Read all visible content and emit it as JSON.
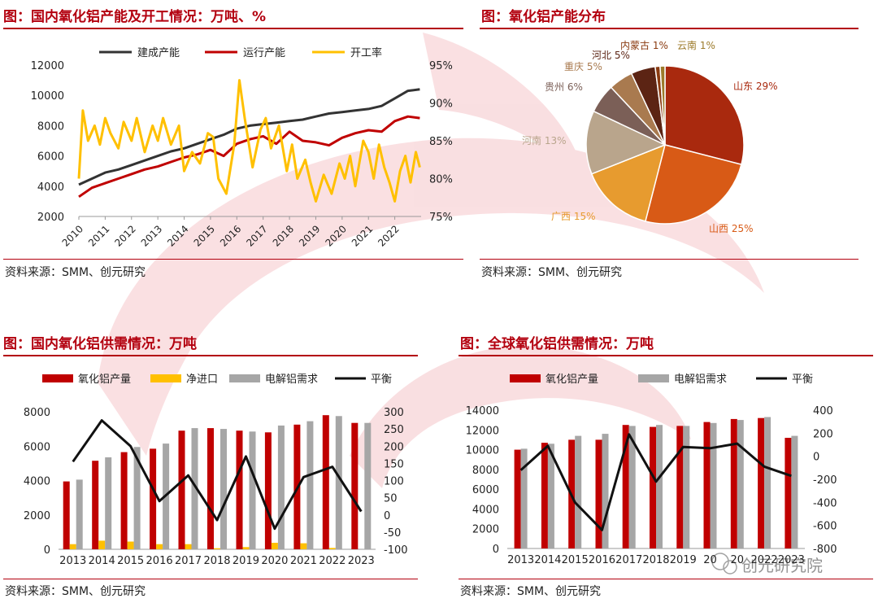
{
  "panels": {
    "tl": {
      "title": "图：国内氧化铝产能及开工情况：万吨、%",
      "source": "资料来源：SMM、创元研究"
    },
    "tr": {
      "title": "图：氧化铝产能分布",
      "source": "资料来源：SMM、创元研究"
    },
    "bl": {
      "title": "图：国内氧化铝供需情况：万吨",
      "source": "资料来源：SMM、创元研究"
    },
    "br": {
      "title": "图：全球氧化铝供需情况：万吨",
      "source": "资料来源：SMM、创元研究"
    }
  },
  "watermark": {
    "text": "创元研究院"
  },
  "colors": {
    "accent": "#b3000f",
    "watermark": "#f4c4c8"
  },
  "chart_data": [
    {
      "id": "capacity_line",
      "type": "line",
      "title": "图：国内氧化铝产能及开工情况：万吨、%",
      "x_ticks": [
        "2010",
        "2011",
        "2012",
        "2013",
        "2014",
        "2015",
        "2016",
        "2017",
        "2018",
        "2019",
        "2020",
        "2021",
        "2022"
      ],
      "ylim": [
        2000,
        12000
      ],
      "y_ticks": [
        "2000",
        "4000",
        "6000",
        "8000",
        "10000",
        "12000"
      ],
      "y2lim": [
        75,
        95
      ],
      "y2_ticks": [
        "75%",
        "80%",
        "85%",
        "90%",
        "95%"
      ],
      "grid": false,
      "legend_position": "top",
      "series": [
        {
          "name": "建成产能",
          "axis": "left",
          "color": "#333333",
          "x": [
            2010.0,
            2010.5,
            2011.0,
            2011.5,
            2012.0,
            2012.5,
            2013.0,
            2013.5,
            2014.0,
            2014.5,
            2015.0,
            2015.5,
            2016.0,
            2016.5,
            2017.0,
            2017.5,
            2018.0,
            2018.5,
            2019.0,
            2019.5,
            2020.0,
            2020.5,
            2021.0,
            2021.5,
            2022.0,
            2022.5,
            2022.95
          ],
          "y": [
            4100,
            4500,
            4900,
            5100,
            5400,
            5700,
            6000,
            6300,
            6500,
            6800,
            7100,
            7400,
            7800,
            8000,
            8100,
            8200,
            8300,
            8400,
            8600,
            8800,
            8900,
            9000,
            9100,
            9300,
            9800,
            10300,
            10400
          ]
        },
        {
          "name": "运行产能",
          "axis": "left",
          "color": "#c00000",
          "x": [
            2010.0,
            2010.5,
            2011.0,
            2011.5,
            2012.0,
            2012.5,
            2013.0,
            2013.5,
            2014.0,
            2014.5,
            2015.0,
            2015.5,
            2016.0,
            2016.5,
            2017.0,
            2017.5,
            2018.0,
            2018.5,
            2019.0,
            2019.5,
            2020.0,
            2020.5,
            2021.0,
            2021.5,
            2022.0,
            2022.5,
            2022.95
          ],
          "y": [
            3300,
            3900,
            4200,
            4500,
            4800,
            5100,
            5300,
            5600,
            5900,
            6100,
            6400,
            6000,
            6800,
            7100,
            7300,
            6800,
            7600,
            7000,
            6900,
            6700,
            7200,
            7500,
            7700,
            7600,
            8300,
            8600,
            8500
          ]
        },
        {
          "name": "开工率",
          "axis": "right",
          "color": "#ffc000",
          "x": [
            2010.0,
            2010.15,
            2010.35,
            2010.6,
            2010.8,
            2011.0,
            2011.2,
            2011.5,
            2011.7,
            2012.0,
            2012.2,
            2012.5,
            2012.8,
            2013.0,
            2013.2,
            2013.5,
            2013.8,
            2014.0,
            2014.3,
            2014.6,
            2014.9,
            2015.1,
            2015.3,
            2015.6,
            2015.9,
            2016.1,
            2016.3,
            2016.6,
            2016.9,
            2017.1,
            2017.3,
            2017.6,
            2017.9,
            2018.1,
            2018.3,
            2018.6,
            2018.8,
            2019.0,
            2019.3,
            2019.6,
            2019.9,
            2020.1,
            2020.3,
            2020.5,
            2020.8,
            2021.0,
            2021.2,
            2021.4,
            2021.6,
            2021.8,
            2022.0,
            2022.2,
            2022.4,
            2022.6,
            2022.8,
            2022.95
          ],
          "y": [
            80.0,
            89.0,
            85.0,
            87.0,
            84.5,
            88.0,
            86.0,
            84.0,
            87.5,
            85.0,
            88.0,
            83.5,
            87.0,
            85.0,
            88.0,
            84.5,
            87.0,
            81.0,
            83.5,
            82.0,
            86.0,
            85.5,
            80.0,
            78.0,
            84.5,
            93.0,
            88.0,
            81.5,
            86.5,
            88.0,
            84.0,
            87.0,
            81.0,
            84.5,
            80.0,
            82.5,
            79.5,
            77.0,
            80.5,
            78.0,
            82.0,
            80.0,
            83.0,
            79.0,
            85.0,
            83.5,
            80.0,
            84.5,
            81.5,
            79.5,
            77.0,
            81.0,
            83.0,
            79.5,
            83.5,
            81.5
          ]
        }
      ]
    },
    {
      "id": "capacity_pie",
      "type": "pie",
      "title": "图：氧化铝产能分布",
      "labels": [
        "山东",
        "山西",
        "广西",
        "河南",
        "贵州",
        "重庆",
        "河北",
        "内蒙古",
        "云南"
      ],
      "values": [
        29,
        25,
        15,
        13,
        6,
        5,
        5,
        1,
        1
      ],
      "label_texts": [
        "山东 29%",
        "山西 25%",
        "广西 15%",
        "河南 13%",
        "贵州 6%",
        "重庆 5%",
        "河北 5%",
        "内蒙古 1%",
        "云南 1%"
      ],
      "colors": [
        "#a9290e",
        "#d85a16",
        "#e79b2f",
        "#b9a58c",
        "#7b5f57",
        "#a97a4f",
        "#5c2414",
        "#8a3a10",
        "#9c7a2a"
      ]
    },
    {
      "id": "domestic_supply",
      "type": "bar",
      "title": "图：国内氧化铝供需情况：万吨",
      "categories": [
        "2013",
        "2014",
        "2015",
        "2016",
        "2017",
        "2018",
        "2019",
        "2020",
        "2021",
        "2022",
        "2023"
      ],
      "ylim": [
        0,
        8000
      ],
      "y_ticks": [
        "0",
        "2000",
        "4000",
        "6000",
        "8000"
      ],
      "y2lim": [
        -100,
        300
      ],
      "y2_ticks": [
        "-100",
        "-50",
        "0",
        "50",
        "100",
        "150",
        "200",
        "250",
        "300"
      ],
      "legend_position": "top",
      "series": [
        {
          "name": "氧化铝产量",
          "type": "bar",
          "axis": "left",
          "color": "#c00000",
          "values": [
            3950,
            5150,
            5650,
            5850,
            6900,
            7050,
            6900,
            6800,
            7250,
            7800,
            7350
          ]
        },
        {
          "name": "净进口",
          "type": "bar",
          "axis": "left",
          "color": "#ffc000",
          "values": [
            300,
            500,
            450,
            300,
            300,
            60,
            130,
            380,
            350,
            80,
            0
          ]
        },
        {
          "name": "电解铝需求",
          "type": "bar",
          "axis": "left",
          "color": "#a6a6a6",
          "values": [
            4050,
            5350,
            5950,
            6150,
            7050,
            7000,
            6850,
            7200,
            7450,
            7750,
            7350
          ]
        },
        {
          "name": "平衡",
          "type": "line",
          "axis": "right",
          "color": "#111111",
          "values": [
            155,
            275,
            200,
            40,
            115,
            -15,
            170,
            -40,
            110,
            140,
            10
          ]
        }
      ]
    },
    {
      "id": "global_supply",
      "type": "bar",
      "title": "图：全球氧化铝供需情况：万吨",
      "categories": [
        "2013",
        "2014",
        "2015",
        "2016",
        "2017",
        "2018",
        "2019",
        "2020",
        "2021",
        "2022",
        "2023"
      ],
      "x_tick_labels": [
        "2013",
        "2014",
        "2015",
        "2016",
        "2017",
        "2018",
        "2019",
        "20",
        "20",
        "2022",
        "2023"
      ],
      "ylim": [
        0,
        14000
      ],
      "y_ticks": [
        "0",
        "2000",
        "4000",
        "6000",
        "8000",
        "10000",
        "12000",
        "14000"
      ],
      "y2lim": [
        -800,
        400
      ],
      "y2_ticks": [
        "-800",
        "-600",
        "-400",
        "-200",
        "0",
        "200",
        "400"
      ],
      "legend_position": "top",
      "series": [
        {
          "name": "氧化铝产量",
          "type": "bar",
          "axis": "left",
          "color": "#c00000",
          "values": [
            10000,
            10700,
            11000,
            11000,
            12500,
            12300,
            12400,
            12800,
            13100,
            13200,
            11200
          ]
        },
        {
          "name": "电解铝需求",
          "type": "bar",
          "axis": "left",
          "color": "#a6a6a6",
          "values": [
            10100,
            10600,
            11400,
            11600,
            12400,
            12500,
            12400,
            12700,
            13000,
            13300,
            11400
          ]
        },
        {
          "name": "平衡",
          "type": "line",
          "axis": "right",
          "color": "#111111",
          "values": [
            -120,
            90,
            -400,
            -640,
            190,
            -220,
            80,
            70,
            110,
            -90,
            -170
          ]
        }
      ]
    }
  ]
}
